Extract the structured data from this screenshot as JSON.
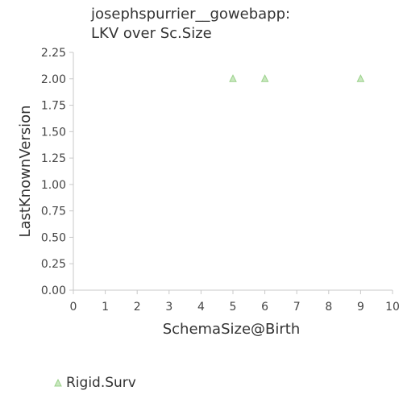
{
  "chart_data": {
    "type": "scatter",
    "title_lines": [
      "josephspurrier__gowebapp:",
      "LKV over Sc.Size"
    ],
    "xlabel": "SchemaSize@Birth",
    "ylabel": "LastKnownVersion",
    "xlim": [
      0,
      10
    ],
    "ylim": [
      0,
      2.25
    ],
    "x_ticks": [
      "0",
      "1",
      "2",
      "3",
      "4",
      "5",
      "6",
      "7",
      "8",
      "9",
      "10"
    ],
    "y_ticks": [
      "0.00",
      "0.25",
      "0.50",
      "0.75",
      "1.00",
      "1.25",
      "1.50",
      "1.75",
      "2.00",
      "2.25"
    ],
    "grid": false,
    "legend_position": "bottom-left",
    "series": [
      {
        "name": "Rigid.Surv",
        "marker": "triangle",
        "color": "#9bd18b",
        "points": [
          {
            "x": 5,
            "y": 2.0
          },
          {
            "x": 6,
            "y": 2.0
          },
          {
            "x": 9,
            "y": 2.0
          }
        ]
      }
    ]
  }
}
